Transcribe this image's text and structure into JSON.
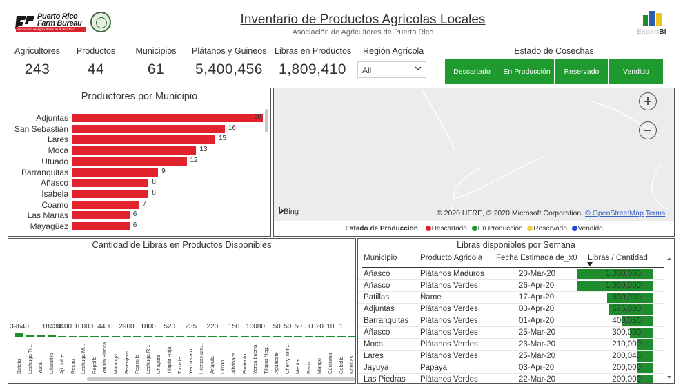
{
  "header": {
    "logo_line1": "Puerto Rico",
    "logo_line2": "Farm Bureau",
    "logo_tagline": "Asociación de Agricultores de Puerto Rico",
    "title": "Inventario de Productos Agrícolas Locales",
    "subtitle": "Asociación de Agricultores de Puerto Rico",
    "brand_a": "Expert",
    "brand_b": "BI"
  },
  "kpis": [
    {
      "label": "Agricultores",
      "value": "243"
    },
    {
      "label": "Productos",
      "value": "44"
    },
    {
      "label": "Municipios",
      "value": "61"
    },
    {
      "label": "Plátanos y Guineos",
      "value": "5,400,456"
    },
    {
      "label": "Libras en Productos",
      "value": "1,809,410"
    }
  ],
  "region": {
    "label": "Región Agrícola",
    "selected": "All"
  },
  "estado": {
    "label": "Estado de Cosechas",
    "buttons": [
      "Descartado",
      "En Producción",
      "Reservado",
      "Vendido"
    ],
    "color": "#1e9a2e"
  },
  "producers_panel": {
    "title": "Productores por Municipio",
    "bar_color": "#e2232e"
  },
  "map_panel": {
    "attribution": "© 2020 HERE, © 2020 Microsoft Corporation,",
    "osm_link": "© OpenStreetMap",
    "terms_link": "Terms",
    "bing": "Bing",
    "legend_title": "Estado de Produccion",
    "legend": [
      {
        "label": "Descartado",
        "color": "#e2232e"
      },
      {
        "label": "En Producción",
        "color": "#1e9a2e"
      },
      {
        "label": "Reservado",
        "color": "#f2d04b"
      },
      {
        "label": "Vendido",
        "color": "#2346d6"
      }
    ]
  },
  "columns_panel": {
    "title": "Cantidad de Libras en Productos Disponibles",
    "bar_color": "#1e8c2c"
  },
  "table_panel": {
    "title": "Libras disponibles por Semana",
    "headers": [
      "Municipio",
      "Producto Agricola",
      "Fecha Estimada de_x0",
      "Libras / Cantidad"
    ],
    "rows": [
      {
        "municipio": "Añasco",
        "producto": "Plátanos Maduros",
        "fecha": "20-Mar-20",
        "libras": "1,000,000",
        "amount": 1000000
      },
      {
        "municipio": "Añasco",
        "producto": "Plátanos Verdes",
        "fecha": "26-Apr-20",
        "libras": "1,000,000",
        "amount": 1000000
      },
      {
        "municipio": "Patillas",
        "producto": "Ñame",
        "fecha": "17-Apr-20",
        "libras": "600,000",
        "amount": 600000
      },
      {
        "municipio": "Adjuntas",
        "producto": "Plátanos Verdes",
        "fecha": "03-Apr-20",
        "libras": "575,000",
        "amount": 575000
      },
      {
        "municipio": "Barranquitas",
        "producto": "Plátanos Verdes",
        "fecha": "01-Apr-20",
        "libras": "400,050",
        "amount": 400050
      },
      {
        "municipio": "Añasco",
        "producto": "Plátanos Verdes",
        "fecha": "25-Mar-20",
        "libras": "300,000",
        "amount": 300000
      },
      {
        "municipio": "Moca",
        "producto": "Plátanos Verdes",
        "fecha": "23-Mar-20",
        "libras": "210,000",
        "amount": 210000
      },
      {
        "municipio": "Lares",
        "producto": "Plátanos Verdes",
        "fecha": "25-Mar-20",
        "libras": "200,045",
        "amount": 200045
      },
      {
        "municipio": "Jayuya",
        "producto": "Papaya",
        "fecha": "03-Apr-20",
        "libras": "200,000",
        "amount": 200000
      },
      {
        "municipio": "Las Piedras",
        "producto": "Plátanos Verdes",
        "fecha": "22-Mar-20",
        "libras": "200,000",
        "amount": 200000
      }
    ]
  },
  "chart_data": [
    {
      "type": "bar",
      "orientation": "horizontal",
      "title": "Productores por Municipio",
      "categories": [
        "Adjuntas",
        "San Sebastián",
        "Lares",
        "Moca",
        "Utuado",
        "Barranquitas",
        "Añasco",
        "Isabela",
        "Coamo",
        "Las Marías",
        "Mayagüez"
      ],
      "values": [
        20,
        16,
        15,
        13,
        12,
        9,
        8,
        8,
        7,
        6,
        6
      ],
      "xlim": [
        0,
        20
      ]
    },
    {
      "type": "bar",
      "title": "Cantidad de Libras en Productos Disponibles",
      "categories": [
        "Batata",
        "Lechuga Ti...",
        "Yuca",
        "Cilantrillo",
        "Ají dulce",
        "Recao",
        "Lechuga M...",
        "Repollo",
        "Yautía Blanca",
        "Malanga",
        "Berenjena",
        "Pepinillo",
        "Lechuga R...",
        "Chayote",
        "Tilapia Roja",
        "Tomate",
        "Yerbas aro...",
        "Hierbas aro...",
        "Arúgula",
        "Limón",
        "Albahaca",
        "Pimiento ...",
        "Yerba buena",
        "Tilapia Neg...",
        "Aguacate",
        "Cherry Tom...",
        "Menta",
        "Pacu",
        "Mango",
        "Cúrcuma",
        "Cebolla",
        "Novillas"
      ],
      "values": [
        39640,
        18430,
        18430,
        18430,
        13400,
        13400,
        10000,
        10000,
        4400,
        4400,
        2900,
        2900,
        1800,
        1800,
        520,
        520,
        235,
        235,
        220,
        220,
        150,
        150,
        10080,
        10080,
        50,
        50,
        50,
        30,
        20,
        10,
        1,
        1
      ],
      "value_labels": [
        "39640",
        "",
        "",
        "18430",
        "13400",
        "",
        "10000",
        "",
        "4400",
        "",
        "2900",
        "",
        "1800",
        "",
        "520",
        "",
        "235",
        "",
        "220",
        "",
        "150",
        "",
        "10080",
        "",
        "50",
        "50",
        "50",
        "30",
        "20",
        "10",
        "1",
        ""
      ]
    }
  ]
}
